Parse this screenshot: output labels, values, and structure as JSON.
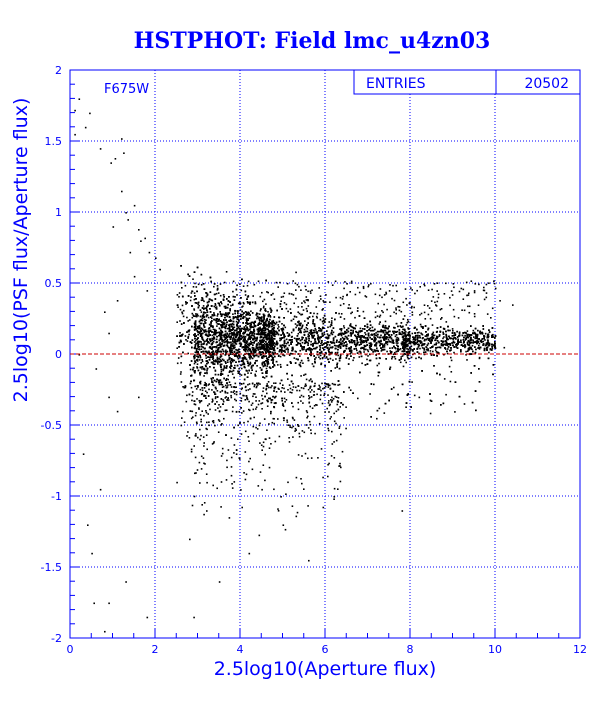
{
  "chart_data": {
    "type": "scatter",
    "title": "HSTPHOT: Field lmc_u4zn03",
    "xlabel": "2.5log10(Aperture flux)",
    "ylabel": "2.5log10(PSF flux/Aperture flux)",
    "xlim": [
      0,
      12
    ],
    "ylim": [
      -2,
      2
    ],
    "xticks": [
      "0",
      "2",
      "4",
      "6",
      "8",
      "10",
      "12"
    ],
    "yticks": [
      "-2",
      "-1.5",
      "-1",
      "-0.5",
      "0",
      "0.5",
      "1",
      "1.5",
      "2"
    ],
    "filter_label": "F675W",
    "stats": {
      "label": "ENTRIES",
      "value": "20502"
    },
    "grid": true,
    "reference_line_y": 0,
    "point_color": "#000000",
    "reference_line_color": "#cc0000",
    "axis_color": "#0000ff",
    "background_color": "#ffffff",
    "points": [
      [
        0.1,
        1.72
      ],
      [
        0.1,
        1.55
      ],
      [
        0.2,
        1.8
      ],
      [
        0.35,
        1.6
      ],
      [
        0.45,
        1.7
      ],
      [
        0.7,
        1.45
      ],
      [
        0.95,
        1.35
      ],
      [
        1.05,
        1.38
      ],
      [
        1.2,
        1.52
      ],
      [
        1.25,
        1.42
      ],
      [
        1.2,
        1.15
      ],
      [
        1.3,
        1.0
      ],
      [
        1.35,
        0.95
      ],
      [
        1.5,
        1.05
      ],
      [
        1.6,
        0.88
      ],
      [
        1.65,
        0.8
      ],
      [
        1.75,
        0.82
      ],
      [
        1.85,
        0.72
      ],
      [
        2.0,
        0.68
      ],
      [
        2.1,
        0.6
      ],
      [
        1.0,
        0.9
      ],
      [
        1.4,
        0.72
      ],
      [
        0.8,
        0.3
      ],
      [
        1.5,
        0.55
      ],
      [
        1.8,
        0.45
      ],
      [
        0.2,
        0.0
      ],
      [
        0.6,
        -0.1
      ],
      [
        0.9,
        0.15
      ],
      [
        1.1,
        -0.4
      ],
      [
        1.6,
        -0.3
      ],
      [
        0.3,
        -0.7
      ],
      [
        0.7,
        -0.95
      ],
      [
        1.3,
        -1.6
      ],
      [
        0.9,
        -1.75
      ],
      [
        0.5,
        -1.4
      ],
      [
        0.4,
        -1.2
      ],
      [
        1.8,
        -1.85
      ],
      [
        0.8,
        -1.95
      ],
      [
        2.5,
        -0.9
      ],
      [
        3.2,
        -1.1
      ],
      [
        3.5,
        -1.6
      ],
      [
        4.2,
        -1.4
      ],
      [
        5.0,
        -1.2
      ],
      [
        5.6,
        -1.45
      ],
      [
        6.2,
        -1.0
      ],
      [
        7.8,
        -1.1
      ],
      [
        2.8,
        -1.3
      ],
      [
        3.9,
        -0.7
      ],
      [
        4.5,
        -0.95
      ],
      [
        2.9,
        -1.85
      ],
      [
        6.5,
        0.5
      ],
      [
        7.0,
        0.48
      ],
      [
        7.5,
        0.45
      ],
      [
        8.0,
        0.47
      ],
      [
        8.5,
        0.46
      ],
      [
        9.0,
        0.5
      ],
      [
        9.5,
        0.45
      ],
      [
        10.1,
        0.38
      ],
      [
        10.4,
        0.35
      ],
      [
        10.2,
        0.05
      ],
      [
        8.2,
        -0.3
      ],
      [
        7.2,
        -0.45
      ],
      [
        6.1,
        -0.35
      ],
      [
        9.3,
        0.0
      ],
      [
        5.3,
        0.58
      ],
      [
        1.1,
        0.38
      ],
      [
        0.9,
        -0.3
      ],
      [
        0.55,
        -1.75
      ],
      [
        3.1,
        -0.25
      ],
      [
        3.6,
        -0.45
      ]
    ]
  }
}
